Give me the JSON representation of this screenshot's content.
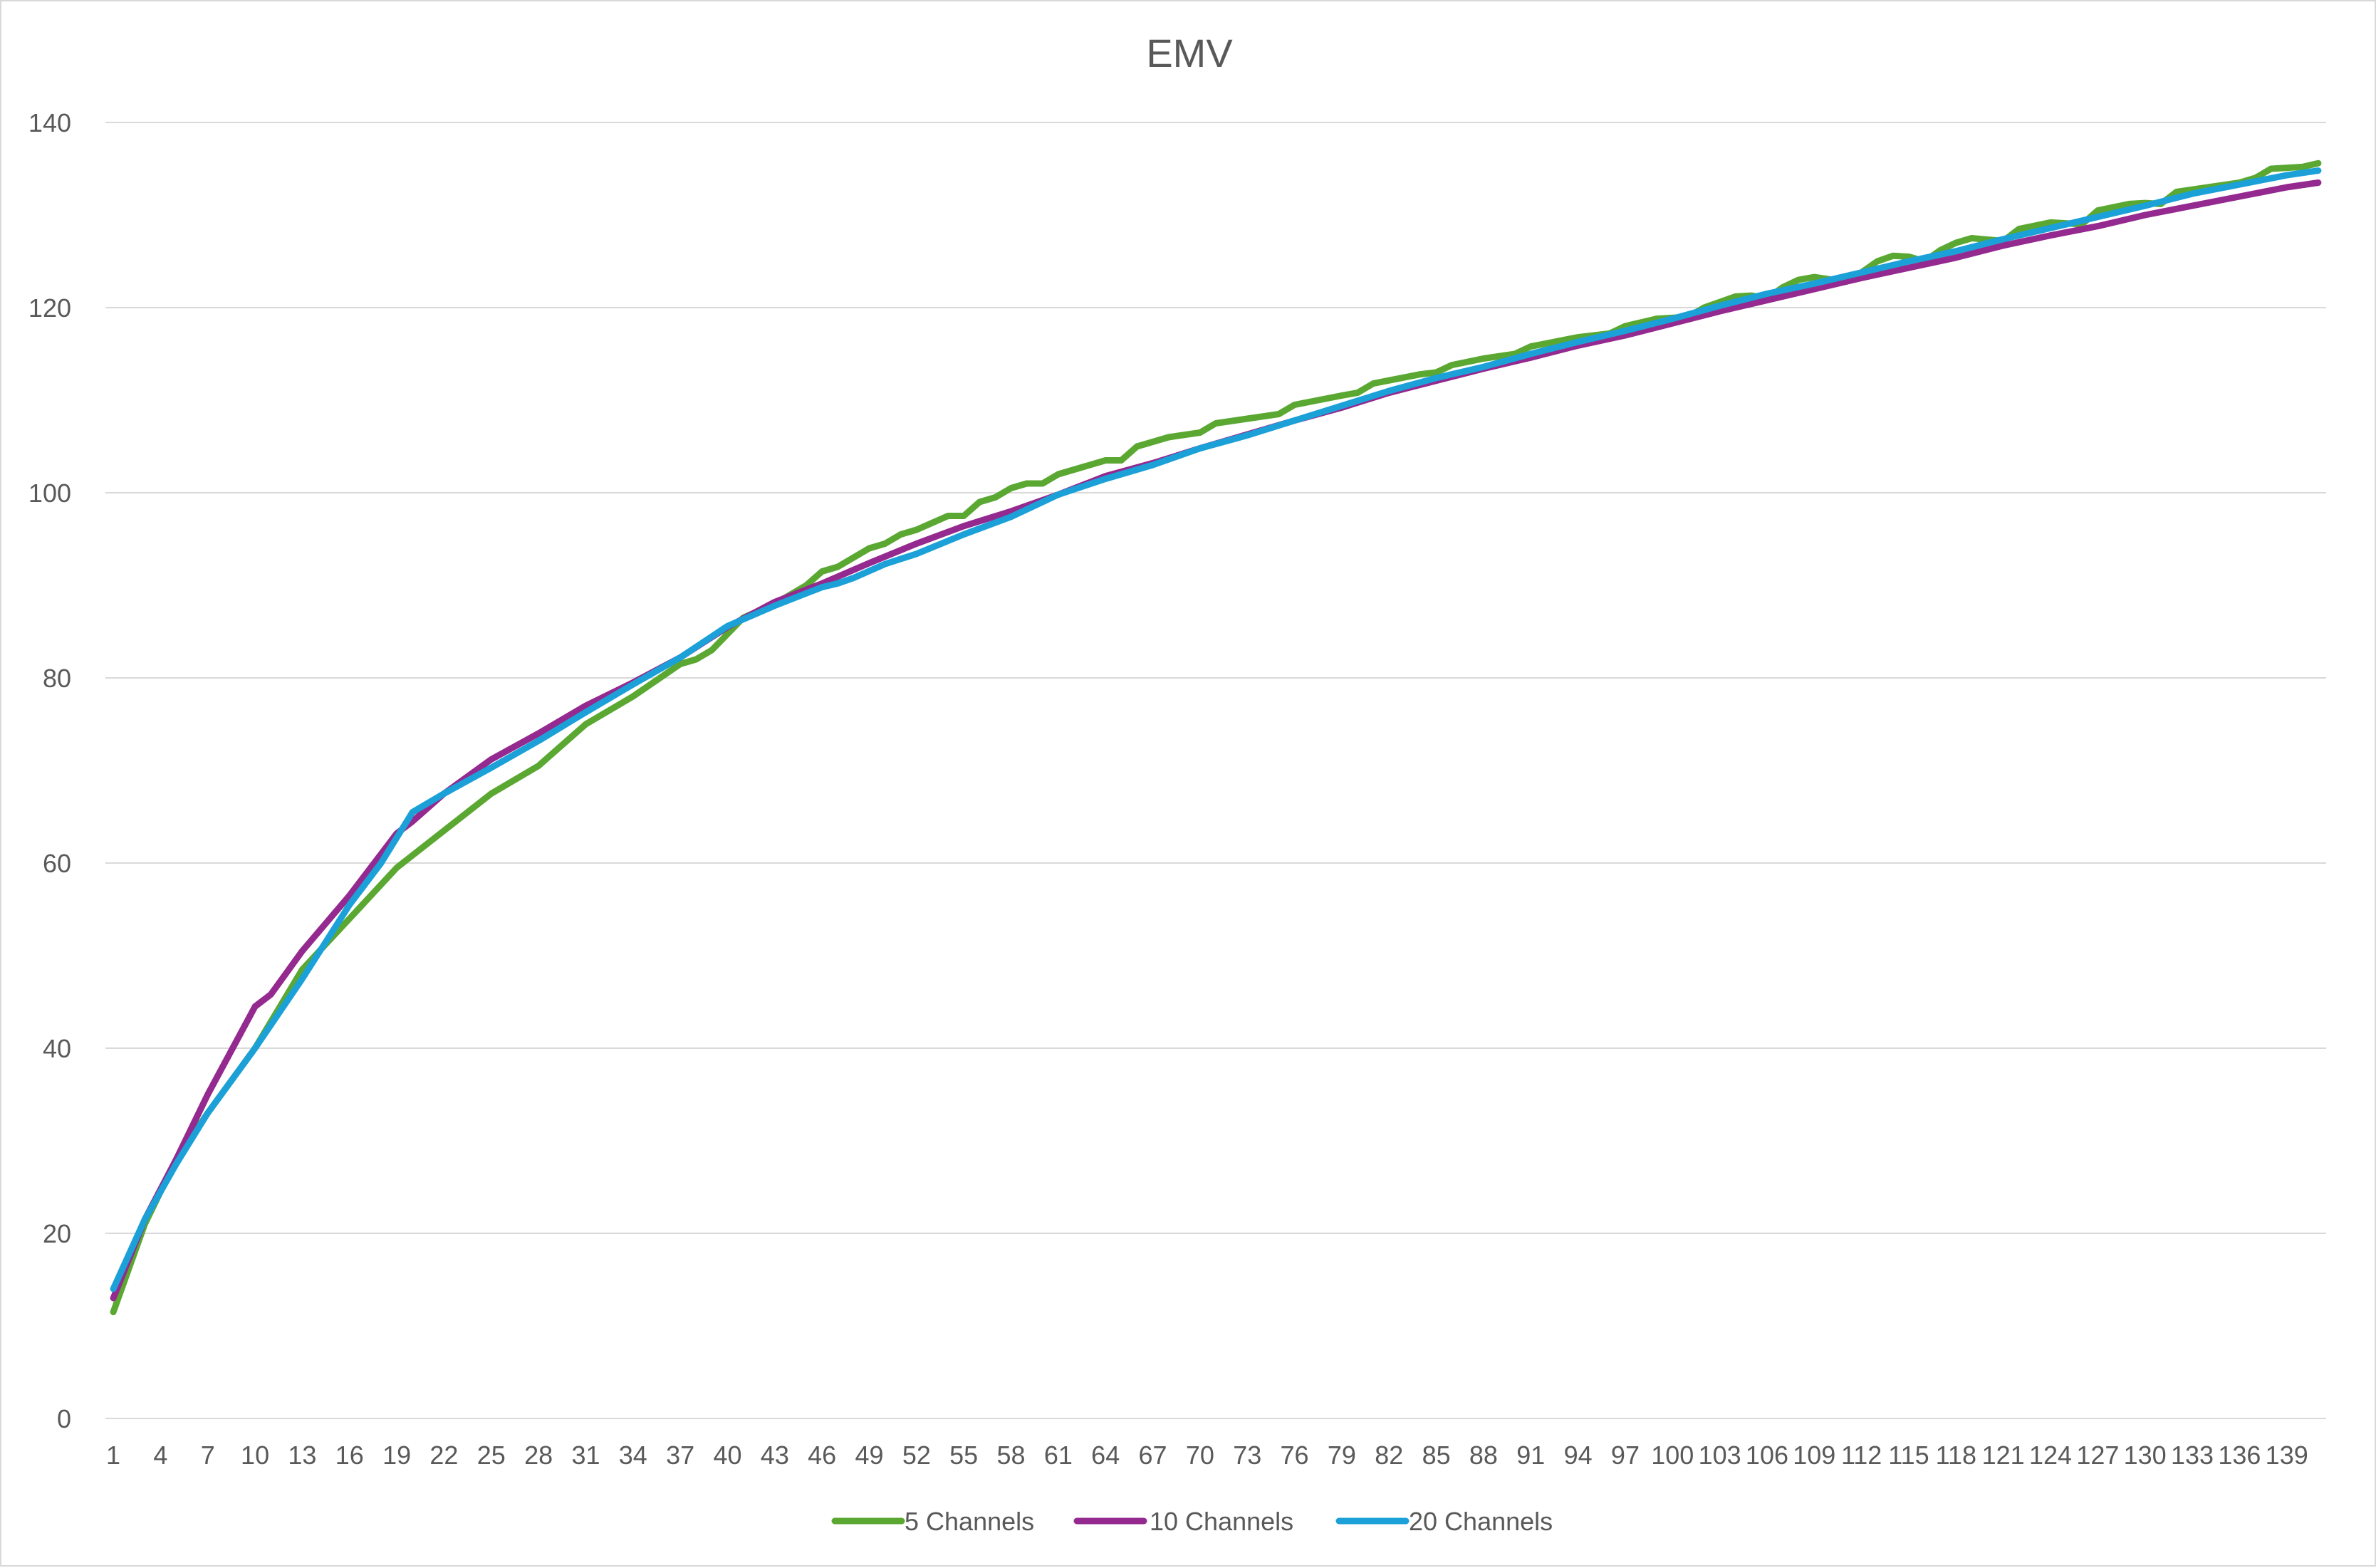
{
  "chart_data": {
    "type": "line",
    "title": "EMV",
    "xlabel": "",
    "ylabel": "",
    "x_range": [
      1,
      139
    ],
    "x_tick_labels": [
      "1",
      "4",
      "7",
      "10",
      "13",
      "16",
      "19",
      "22",
      "25",
      "28",
      "31",
      "34",
      "37",
      "40",
      "43",
      "46",
      "49",
      "52",
      "55",
      "58",
      "61",
      "64",
      "67",
      "70",
      "73",
      "76",
      "79",
      "82",
      "85",
      "88",
      "91",
      "94",
      "97",
      "100",
      "103",
      "106",
      "109",
      "112",
      "115",
      "118",
      "121",
      "124",
      "127",
      "130",
      "133",
      "136",
      "139"
    ],
    "ylim": [
      0,
      140
    ],
    "y_ticks": [
      0,
      20,
      40,
      60,
      80,
      100,
      120,
      140
    ],
    "grid": true,
    "legend_position": "bottom",
    "series": [
      {
        "name": "5 Channels",
        "color": "#5aa832",
        "points": [
          [
            1,
            11.5
          ],
          [
            3,
            21
          ],
          [
            5,
            28
          ],
          [
            7,
            33
          ],
          [
            10,
            40
          ],
          [
            13,
            48.5
          ],
          [
            16,
            54
          ],
          [
            19,
            59.5
          ],
          [
            22,
            63.5
          ],
          [
            25,
            67.5
          ],
          [
            28,
            70.5
          ],
          [
            31,
            75
          ],
          [
            34,
            78
          ],
          [
            37,
            81.5
          ],
          [
            38,
            82
          ],
          [
            39,
            83
          ],
          [
            41,
            86.5
          ],
          [
            43,
            88
          ],
          [
            45,
            90
          ],
          [
            46,
            91.5
          ],
          [
            47,
            92
          ],
          [
            48,
            93
          ],
          [
            49,
            94
          ],
          [
            50,
            94.5
          ],
          [
            51,
            95.5
          ],
          [
            52,
            96
          ],
          [
            54,
            97.5
          ],
          [
            55,
            97.5
          ],
          [
            56,
            99
          ],
          [
            57,
            99.5
          ],
          [
            58,
            100.5
          ],
          [
            59,
            101
          ],
          [
            60,
            101
          ],
          [
            61,
            102
          ],
          [
            62,
            102.5
          ],
          [
            64,
            103.5
          ],
          [
            65,
            103.5
          ],
          [
            66,
            105
          ],
          [
            68,
            106
          ],
          [
            70,
            106.5
          ],
          [
            71,
            107.5
          ],
          [
            73,
            108
          ],
          [
            75,
            108.5
          ],
          [
            76,
            109.5
          ],
          [
            79,
            110.5
          ],
          [
            80,
            110.8
          ],
          [
            81,
            111.8
          ],
          [
            84,
            112.8
          ],
          [
            85,
            113
          ],
          [
            86,
            113.8
          ],
          [
            88,
            114.5
          ],
          [
            90,
            115
          ],
          [
            91,
            115.8
          ],
          [
            94,
            116.8
          ],
          [
            96,
            117.2
          ],
          [
            97,
            118
          ],
          [
            99,
            118.8
          ],
          [
            101,
            119
          ],
          [
            102,
            120
          ],
          [
            104,
            121.2
          ],
          [
            105,
            121.3
          ],
          [
            106,
            121
          ],
          [
            107,
            122.2
          ],
          [
            108,
            123
          ],
          [
            109,
            123.3
          ],
          [
            111,
            122.8
          ],
          [
            112,
            123.8
          ],
          [
            113,
            125
          ],
          [
            114,
            125.6
          ],
          [
            115,
            125.5
          ],
          [
            116,
            125
          ],
          [
            117,
            126.2
          ],
          [
            118,
            127
          ],
          [
            119,
            127.5
          ],
          [
            121,
            127.2
          ],
          [
            122,
            128.5
          ],
          [
            124,
            129.2
          ],
          [
            126,
            129
          ],
          [
            127,
            130.5
          ],
          [
            129,
            131.2
          ],
          [
            130,
            131.3
          ],
          [
            131,
            131.2
          ],
          [
            132,
            132.5
          ],
          [
            134,
            133
          ],
          [
            136,
            133.5
          ],
          [
            137,
            134
          ],
          [
            138,
            135
          ],
          [
            140,
            135.2
          ],
          [
            141,
            135.6
          ]
        ]
      },
      {
        "name": "10 Channels",
        "color": "#94298f",
        "points": [
          [
            1,
            13
          ],
          [
            3,
            21.5
          ],
          [
            5,
            28
          ],
          [
            7,
            35
          ],
          [
            10,
            44.5
          ],
          [
            11,
            45.8
          ],
          [
            13,
            50.5
          ],
          [
            16,
            56.5
          ],
          [
            19,
            63.2
          ],
          [
            20,
            64.5
          ],
          [
            22,
            67.5
          ],
          [
            25,
            71.2
          ],
          [
            28,
            74
          ],
          [
            31,
            77
          ],
          [
            34,
            79.5
          ],
          [
            37,
            82.2
          ],
          [
            40,
            85.5
          ],
          [
            43,
            88.2
          ],
          [
            46,
            90.2
          ],
          [
            49,
            92.4
          ],
          [
            52,
            94.5
          ],
          [
            55,
            96.4
          ],
          [
            58,
            98
          ],
          [
            61,
            99.8
          ],
          [
            64,
            101.8
          ],
          [
            67,
            103.2
          ],
          [
            70,
            104.8
          ],
          [
            73,
            106.3
          ],
          [
            76,
            107.8
          ],
          [
            79,
            109.2
          ],
          [
            82,
            110.8
          ],
          [
            85,
            112.1
          ],
          [
            88,
            113.4
          ],
          [
            91,
            114.6
          ],
          [
            94,
            115.9
          ],
          [
            97,
            117
          ],
          [
            100,
            118.3
          ],
          [
            103,
            119.6
          ],
          [
            106,
            120.8
          ],
          [
            109,
            122
          ],
          [
            112,
            123.2
          ],
          [
            115,
            124.3
          ],
          [
            118,
            125.4
          ],
          [
            121,
            126.7
          ],
          [
            124,
            127.8
          ],
          [
            127,
            128.8
          ],
          [
            130,
            130
          ],
          [
            133,
            131
          ],
          [
            136,
            132
          ],
          [
            139,
            133
          ],
          [
            141,
            133.5
          ]
        ]
      },
      {
        "name": "20 Channels",
        "color": "#1ba1d8",
        "points": [
          [
            1,
            14
          ],
          [
            3,
            21.5
          ],
          [
            5,
            27.5
          ],
          [
            7,
            33
          ],
          [
            10,
            40
          ],
          [
            13,
            47.5
          ],
          [
            16,
            55.5
          ],
          [
            18,
            60
          ],
          [
            20,
            65.5
          ],
          [
            22,
            67.5
          ],
          [
            25,
            70.3
          ],
          [
            28,
            73.2
          ],
          [
            31,
            76.3
          ],
          [
            34,
            79.3
          ],
          [
            37,
            82.2
          ],
          [
            40,
            85.6
          ],
          [
            43,
            87.8
          ],
          [
            46,
            89.8
          ],
          [
            47,
            90.2
          ],
          [
            48,
            90.8
          ],
          [
            50,
            92.3
          ],
          [
            52,
            93.4
          ],
          [
            55,
            95.5
          ],
          [
            58,
            97.4
          ],
          [
            61,
            99.8
          ],
          [
            64,
            101.5
          ],
          [
            67,
            103
          ],
          [
            70,
            104.8
          ],
          [
            73,
            106.2
          ],
          [
            76,
            107.8
          ],
          [
            79,
            109.4
          ],
          [
            82,
            111
          ],
          [
            85,
            112.4
          ],
          [
            88,
            113.6
          ],
          [
            91,
            115
          ],
          [
            94,
            116.3
          ],
          [
            97,
            117.5
          ],
          [
            100,
            118.8
          ],
          [
            103,
            120.2
          ],
          [
            106,
            121.5
          ],
          [
            109,
            122.6
          ],
          [
            112,
            123.8
          ],
          [
            115,
            125
          ],
          [
            118,
            126.1
          ],
          [
            121,
            127.4
          ],
          [
            124,
            128.6
          ],
          [
            127,
            129.8
          ],
          [
            130,
            131
          ],
          [
            133,
            132.3
          ],
          [
            136,
            133.3
          ],
          [
            139,
            134.3
          ],
          [
            141,
            134.8
          ]
        ]
      }
    ]
  }
}
